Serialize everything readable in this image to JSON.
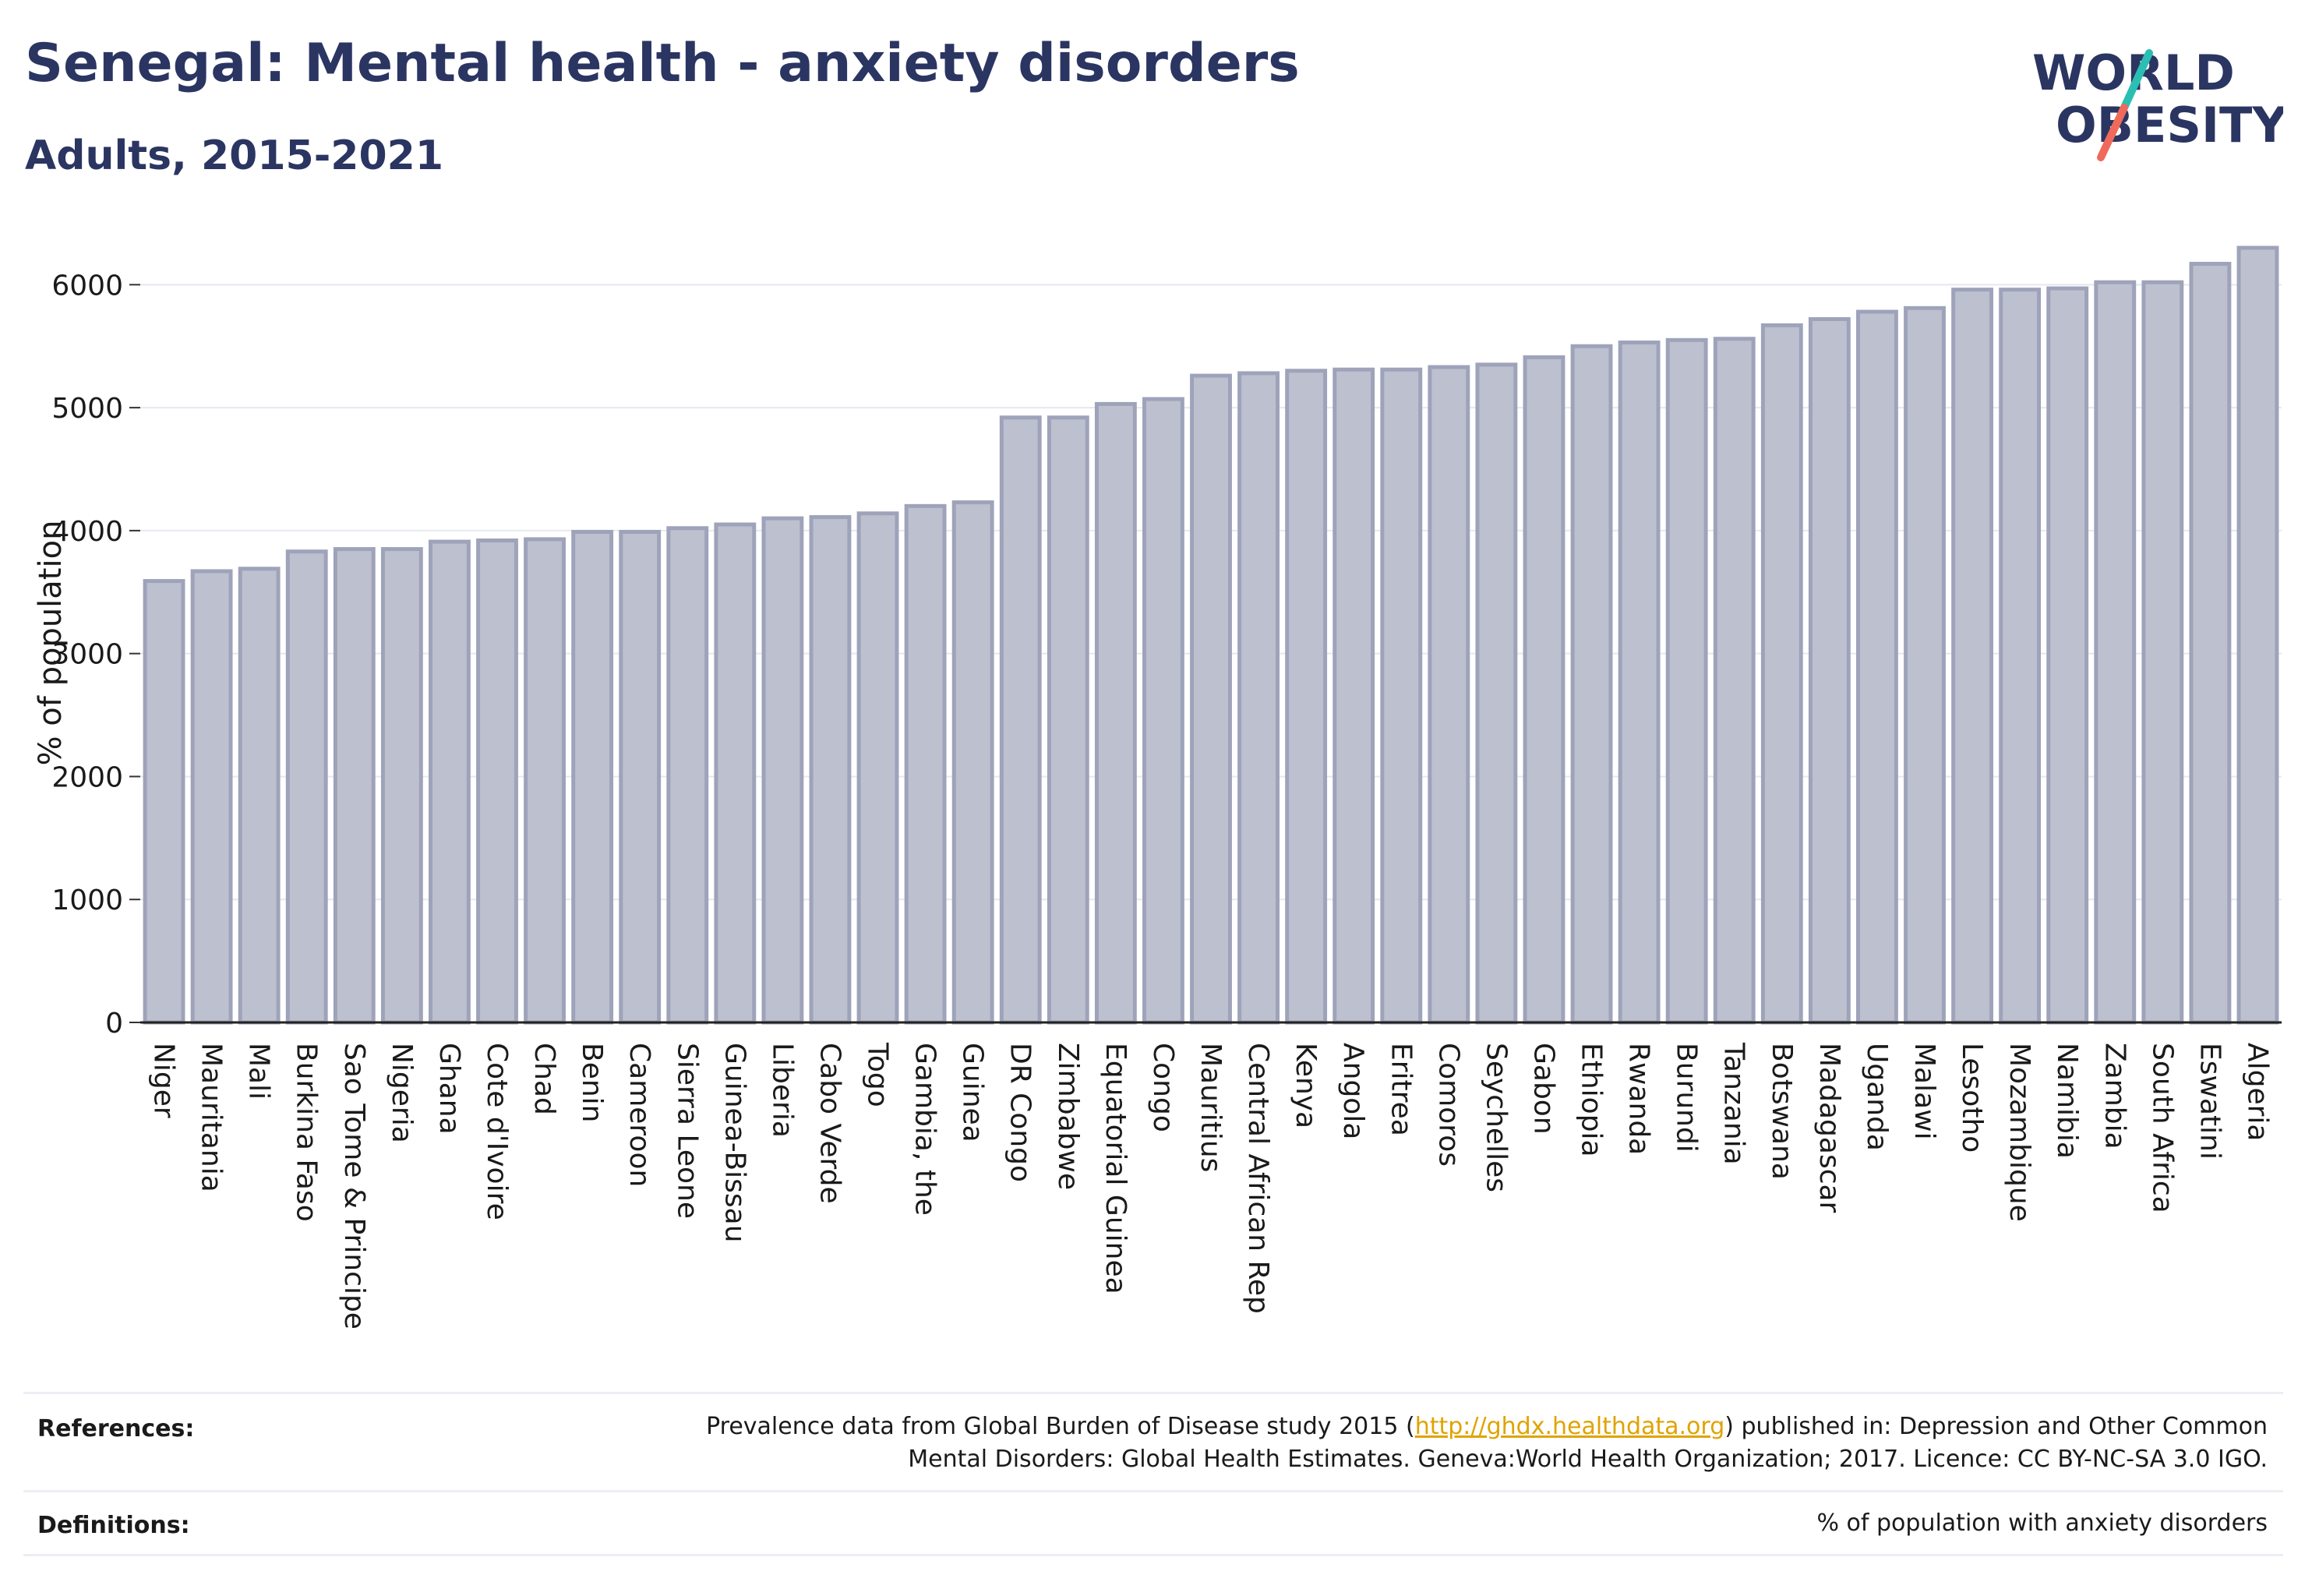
{
  "header": {
    "title": "Senegal: Mental health - anxiety disorders",
    "subtitle": "Adults, 2015-2021"
  },
  "logo": {
    "line1": "WORLD",
    "line2": "OBESITY"
  },
  "colors": {
    "title": "#2b3562",
    "bar_fill": "#bcc0cf",
    "bar_stroke": "#9ea3ba",
    "grid": "#e6e8ef",
    "link": "#e0a300",
    "logo_teal": "#2bbfb3",
    "logo_coral": "#ef6a5a"
  },
  "chart_data": {
    "type": "bar",
    "ylabel": "% of population",
    "ylim": [
      0,
      6300
    ],
    "yticks": [
      0,
      1000,
      2000,
      3000,
      4000,
      5000,
      6000
    ],
    "grid": true,
    "categories": [
      "Niger",
      "Mauritania",
      "Mali",
      "Burkina Faso",
      "Sao Tome & Principe",
      "Nigeria",
      "Ghana",
      "Cote d'Ivoire",
      "Chad",
      "Benin",
      "Cameroon",
      "Sierra Leone",
      "Guinea-Bissau",
      "Liberia",
      "Cabo Verde",
      "Togo",
      "Gambia, the",
      "Guinea",
      "DR Congo",
      "Zimbabwe",
      "Equatorial Guinea",
      "Congo",
      "Mauritius",
      "Central African Rep",
      "Kenya",
      "Angola",
      "Eritrea",
      "Comoros",
      "Seychelles",
      "Gabon",
      "Ethiopia",
      "Rwanda",
      "Burundi",
      "Tanzania",
      "Botswana",
      "Madagascar",
      "Uganda",
      "Malawi",
      "Lesotho",
      "Mozambique",
      "Namibia",
      "Zambia",
      "South Africa",
      "Eswatini",
      "Algeria"
    ],
    "values": [
      3590,
      3670,
      3690,
      3830,
      3850,
      3850,
      3910,
      3920,
      3930,
      3990,
      3990,
      4020,
      4050,
      4100,
      4110,
      4140,
      4200,
      4230,
      4920,
      4920,
      5030,
      5070,
      5260,
      5280,
      5300,
      5310,
      5310,
      5330,
      5350,
      5410,
      5500,
      5530,
      5550,
      5560,
      5670,
      5720,
      5780,
      5810,
      5960,
      5960,
      5970,
      6020,
      6020,
      6170,
      6300
    ]
  },
  "footer": {
    "references_label": "References:",
    "references_line1_pre": "Prevalence data from Global Burden of Disease study 2015 (",
    "references_link": "http://ghdx.healthdata.org",
    "references_line1_post": ") published in: Depression and Other Common",
    "references_line2": "Mental Disorders: Global Health Estimates. Geneva:World Health Organization; 2017. Licence: CC BY-NC-SA 3.0 IGO.",
    "definitions_label": "Definitions:",
    "definitions_text": "% of population with anxiety disorders"
  }
}
